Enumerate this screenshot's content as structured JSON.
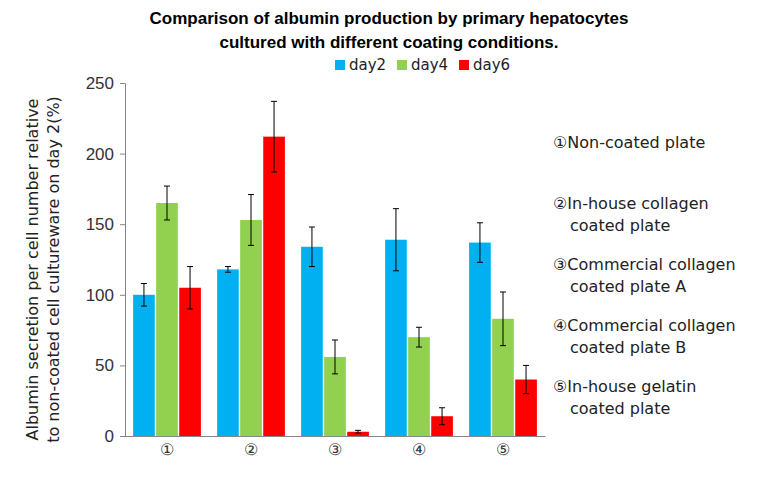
{
  "chart_data": {
    "type": "bar",
    "title": [
      "Comparison of albumin production by primary hepatocytes",
      "cultured with different coating conditions."
    ],
    "y_label": [
      "Albumin secretion per cell number relative",
      "to non-coated cell cultureware on day 2(%)"
    ],
    "categories": [
      "①",
      "②",
      "③",
      "④",
      "⑤"
    ],
    "series": [
      {
        "name": "day2",
        "color": "#00b0f0",
        "values": [
          100,
          118,
          134,
          139,
          137
        ],
        "errors": [
          8,
          2,
          14,
          22,
          14
        ]
      },
      {
        "name": "day4",
        "color": "#92d050",
        "values": [
          165,
          153,
          56,
          70,
          83
        ],
        "errors": [
          12,
          18,
          12,
          7,
          19
        ]
      },
      {
        "name": "day6",
        "color": "#ff0000",
        "values": [
          105,
          212,
          3,
          14,
          40
        ],
        "errors": [
          15,
          25,
          1,
          6,
          10
        ]
      }
    ],
    "ylim": [
      0,
      250
    ],
    "yticks": [
      0,
      50,
      100,
      150,
      200,
      250
    ],
    "grid": false,
    "legend": "top",
    "annotations": [
      [
        "①Non-coated plate"
      ],
      [
        "②In-house collagen",
        "coated plate"
      ],
      [
        "③Commercial collagen",
        "coated plate A"
      ],
      [
        "④Commercial collagen",
        "coated plate B"
      ],
      [
        "⑤In-house gelatin",
        "coated plate"
      ]
    ]
  }
}
